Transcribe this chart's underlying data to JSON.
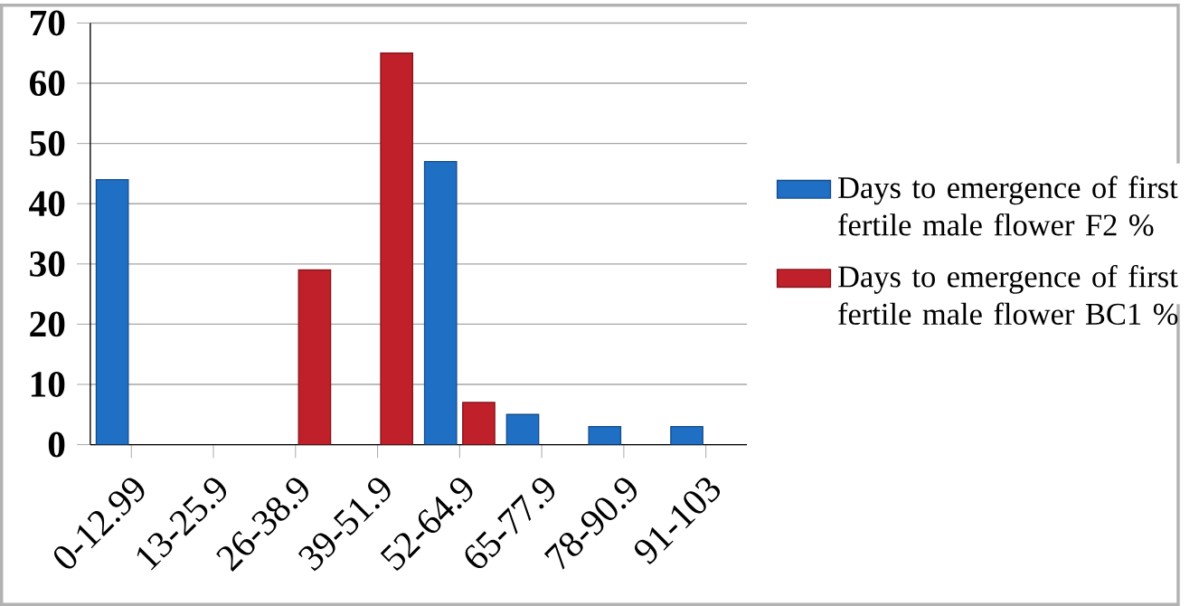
{
  "chart_data": {
    "type": "bar",
    "categories": [
      "0-12.99",
      "13-25.9",
      "26-38.9",
      "39-51.9",
      "52-64.9",
      "65-77.9",
      "78-90.9",
      "91-103"
    ],
    "series": [
      {
        "name": "Days to emergence of first fertile male flower  F2 %",
        "color": "#1f6fc5",
        "values": [
          44,
          null,
          null,
          null,
          47,
          5,
          3,
          3
        ]
      },
      {
        "name": "Days to emergence of first fertile male flower  BC1 %",
        "color": "#c0202a",
        "values": [
          null,
          null,
          29,
          65,
          7,
          null,
          null,
          null
        ]
      }
    ],
    "ylim": [
      0,
      70
    ],
    "yticks": [
      0,
      10,
      20,
      30,
      40,
      50,
      60,
      70
    ],
    "grid": "y",
    "legend": "right"
  }
}
